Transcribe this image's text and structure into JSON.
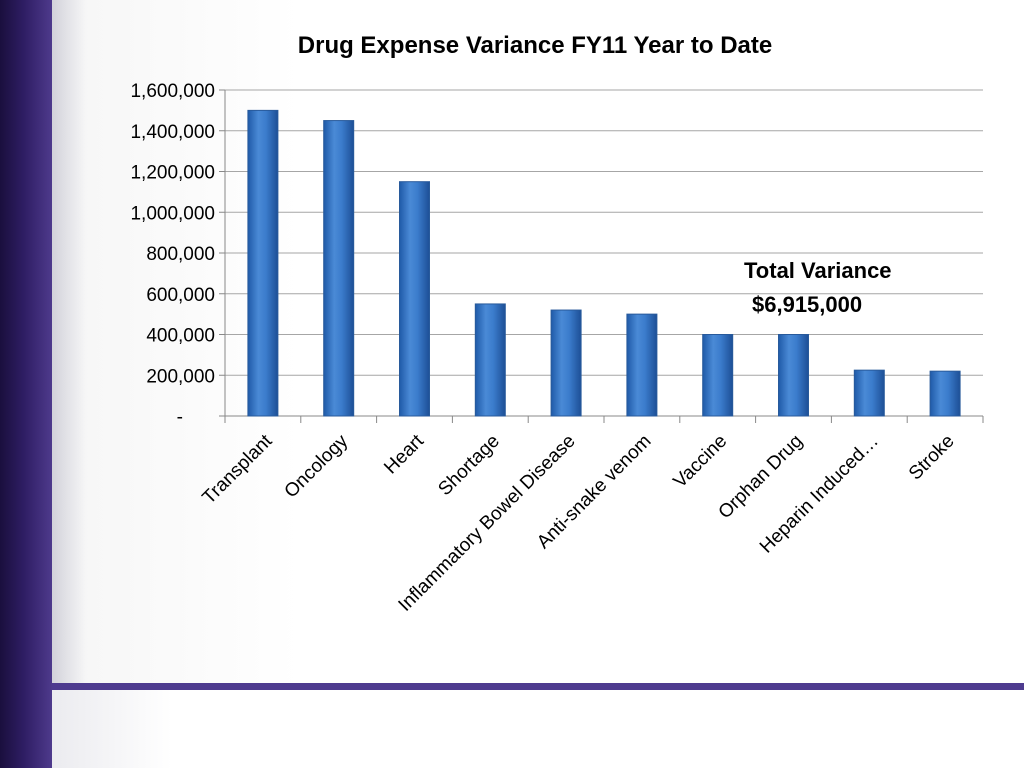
{
  "colors": {
    "accent_purple": "#4e3b8f",
    "bar_fill": "#3d7cc9",
    "bar_edge": "#285a9b",
    "grid": "#a6a6a6"
  },
  "chart_data": {
    "type": "bar",
    "title": "Drug Expense Variance FY11 Year to Date",
    "xlabel": "",
    "ylabel": "",
    "ylim": [
      0,
      1600000
    ],
    "yticks": [
      0,
      200000,
      400000,
      600000,
      800000,
      1000000,
      1200000,
      1400000,
      1600000
    ],
    "ytick_labels": [
      "-",
      "200,000",
      "400,000",
      "600,000",
      "800,000",
      "1,000,000",
      "1,200,000",
      "1,400,000",
      "1,600,000"
    ],
    "categories": [
      "Transplant",
      "Oncology",
      "Heart",
      "Shortage",
      "Inflammatory Bowel Disease",
      "Anti-snake venom",
      "Vaccine",
      "Orphan Drug",
      "Heparin Induced…",
      "Stroke"
    ],
    "values": [
      1500000,
      1450000,
      1150000,
      550000,
      520000,
      500000,
      400000,
      400000,
      225000,
      220000
    ],
    "grid": true,
    "legend": "none"
  },
  "annotation": {
    "label": "Total Variance",
    "value": "$6,915,000"
  }
}
